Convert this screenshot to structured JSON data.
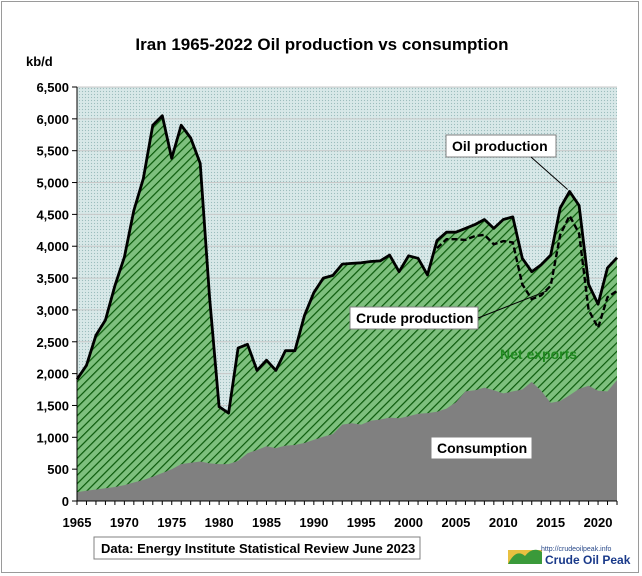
{
  "chart_data": {
    "type": "area",
    "title": "Iran 1965-2022 Oil production  vs consumption",
    "ylabel": "kb/d",
    "xlabel": "",
    "xlim": [
      1965,
      2022
    ],
    "ylim": [
      0,
      6500
    ],
    "x_ticks": [
      1965,
      1970,
      1975,
      1980,
      1985,
      1990,
      1995,
      2000,
      2005,
      2010,
      2015,
      2020
    ],
    "y_ticks": [
      0,
      500,
      1000,
      1500,
      2000,
      2500,
      3000,
      3500,
      4000,
      4500,
      5000,
      5500,
      6000,
      6500
    ],
    "grid": "horizontal",
    "years": [
      1965,
      1966,
      1967,
      1968,
      1969,
      1970,
      1971,
      1972,
      1973,
      1974,
      1975,
      1976,
      1977,
      1978,
      1979,
      1980,
      1981,
      1982,
      1983,
      1984,
      1985,
      1986,
      1987,
      1988,
      1989,
      1990,
      1991,
      1992,
      1993,
      1994,
      1995,
      1996,
      1997,
      1998,
      1999,
      2000,
      2001,
      2002,
      2003,
      2004,
      2005,
      2006,
      2007,
      2008,
      2009,
      2010,
      2011,
      2012,
      2013,
      2014,
      2015,
      2016,
      2017,
      2018,
      2019,
      2020,
      2021,
      2022
    ],
    "series": [
      {
        "name": "Oil production",
        "style": "area-hatched-green",
        "values": [
          1910,
          2130,
          2600,
          2840,
          3380,
          3830,
          4560,
          5060,
          5900,
          6050,
          5380,
          5900,
          5700,
          5300,
          3190,
          1480,
          1380,
          2400,
          2460,
          2050,
          2210,
          2050,
          2360,
          2360,
          2910,
          3270,
          3500,
          3540,
          3720,
          3730,
          3740,
          3760,
          3770,
          3860,
          3600,
          3850,
          3810,
          3550,
          4090,
          4220,
          4220,
          4280,
          4340,
          4420,
          4280,
          4420,
          4460,
          3810,
          3600,
          3710,
          3860,
          4600,
          4860,
          4640,
          3400,
          3090,
          3660,
          3820
        ]
      },
      {
        "name": "Crude production",
        "style": "dashed-line",
        "values": [
          null,
          null,
          null,
          null,
          null,
          null,
          null,
          null,
          null,
          null,
          null,
          null,
          null,
          null,
          null,
          null,
          null,
          null,
          null,
          null,
          null,
          null,
          null,
          null,
          null,
          null,
          null,
          null,
          null,
          null,
          null,
          null,
          null,
          null,
          null,
          null,
          null,
          null,
          3970,
          4110,
          4110,
          4100,
          4160,
          4180,
          4030,
          4080,
          4060,
          3400,
          3170,
          3230,
          3380,
          4180,
          4480,
          4200,
          3000,
          2720,
          3200,
          3300
        ]
      },
      {
        "name": "Consumption",
        "style": "area-grey",
        "values": [
          140,
          160,
          180,
          200,
          220,
          250,
          290,
          330,
          380,
          440,
          500,
          580,
          600,
          620,
          590,
          580,
          580,
          630,
          750,
          800,
          860,
          830,
          870,
          880,
          910,
          960,
          1010,
          1050,
          1200,
          1220,
          1200,
          1260,
          1280,
          1310,
          1300,
          1330,
          1370,
          1380,
          1400,
          1450,
          1550,
          1720,
          1740,
          1780,
          1740,
          1690,
          1720,
          1750,
          1870,
          1730,
          1540,
          1570,
          1660,
          1760,
          1810,
          1730,
          1720,
          1900
        ]
      }
    ],
    "annotations": [
      {
        "text": "Oil production",
        "boxed": true
      },
      {
        "text": "Crude production",
        "boxed": true
      },
      {
        "text": "Net exports",
        "boxed": false,
        "color": "#1f8a1f"
      },
      {
        "text": "Consumption",
        "boxed": true
      }
    ],
    "source_note": "Data: Energy Institute Statistical Review June 2023",
    "colors": {
      "production_fill": "#7ec07e",
      "hatch_line": "#0a5a0a",
      "consumption_fill": "#808080",
      "grid": "#c8c8c8",
      "net_exports_label": "#1f8a1f"
    }
  },
  "logo": {
    "url_text": "http://crudeoilpeak.info",
    "name": "Crude Oil Peak"
  }
}
